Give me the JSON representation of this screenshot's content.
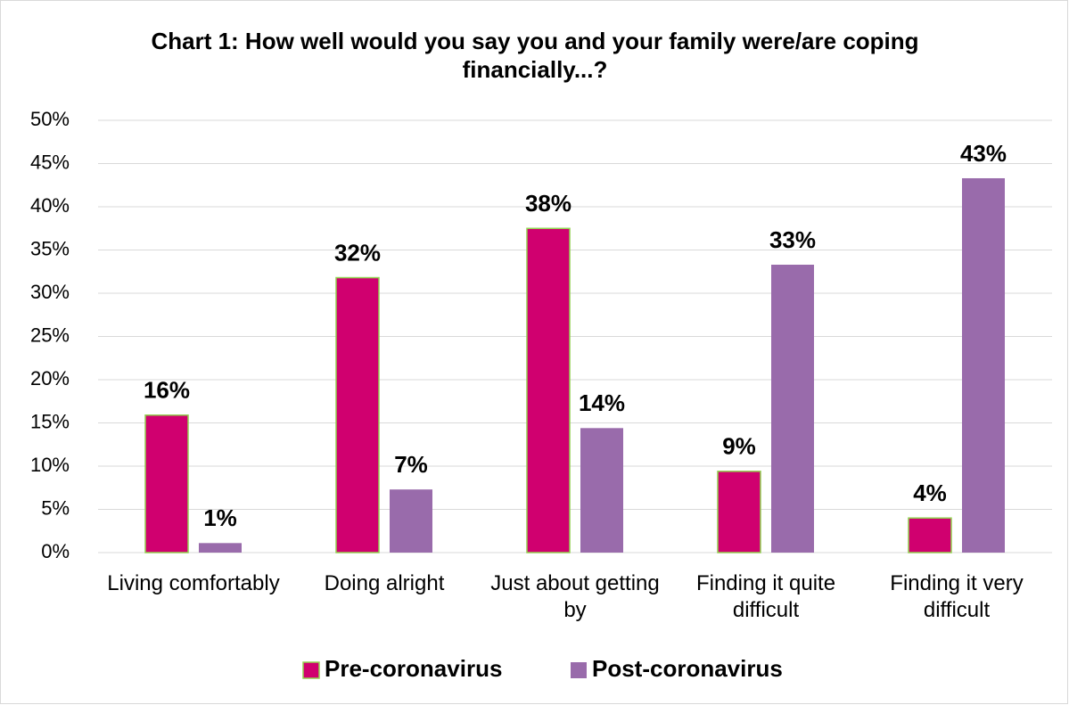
{
  "chart_data": {
    "type": "bar",
    "title": "Chart 1: How well would you say you and your family were/are coping financially...?",
    "categories": [
      "Living comfortably",
      "Doing alright",
      "Just about getting by",
      "Finding it quite difficult",
      "Finding it very difficult"
    ],
    "series": [
      {
        "name": "Pre-coronavirus",
        "color": "#d0006f",
        "values": [
          15.9,
          31.8,
          37.5,
          9.4,
          4.0
        ],
        "value_labels": [
          "16%",
          "32%",
          "38%",
          "9%",
          "4%"
        ]
      },
      {
        "name": "Post-coronavirus",
        "color": "#996bab",
        "values": [
          1.1,
          7.3,
          14.4,
          33.3,
          43.3
        ],
        "value_labels": [
          "1%",
          "7%",
          "14%",
          "33%",
          "43%"
        ]
      }
    ],
    "ylim": [
      0,
      50
    ],
    "yticks": [
      {
        "value": 0,
        "label": "0%"
      },
      {
        "value": 5,
        "label": "5%"
      },
      {
        "value": 10,
        "label": "10%"
      },
      {
        "value": 15,
        "label": "15%"
      },
      {
        "value": 20,
        "label": "20%"
      },
      {
        "value": 25,
        "label": "25%"
      },
      {
        "value": 30,
        "label": "30%"
      },
      {
        "value": 35,
        "label": "35%"
      },
      {
        "value": 40,
        "label": "40%"
      },
      {
        "value": 45,
        "label": "45%"
      },
      {
        "value": 50,
        "label": "50%"
      }
    ],
    "grid": true,
    "legend": "bottom"
  }
}
